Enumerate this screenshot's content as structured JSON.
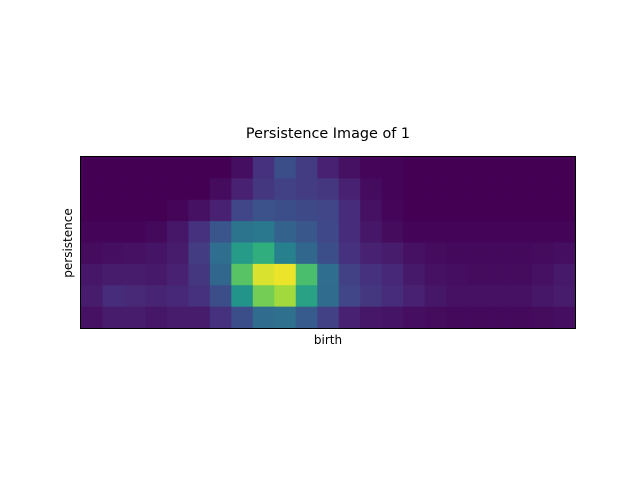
{
  "chart_data": {
    "type": "heatmap",
    "title": "Persistence Image of 1",
    "xlabel": "birth",
    "ylabel": "persistence",
    "colormap": "viridis",
    "rows": 8,
    "cols": 23,
    "value_range": [
      0,
      1
    ],
    "x_ticks_visible": false,
    "y_ticks_visible": false,
    "grid": false,
    "values": [
      [
        0.0,
        0.0,
        0.0,
        0.0,
        0.0,
        0.0,
        0.0,
        0.05,
        0.18,
        0.3,
        0.22,
        0.12,
        0.06,
        0.02,
        0.01,
        0.0,
        0.0,
        0.0,
        0.0,
        0.0,
        0.0,
        0.0,
        0.0
      ],
      [
        0.0,
        0.0,
        0.0,
        0.0,
        0.0,
        0.0,
        0.04,
        0.12,
        0.2,
        0.24,
        0.22,
        0.2,
        0.12,
        0.04,
        0.01,
        0.0,
        0.0,
        0.0,
        0.0,
        0.0,
        0.0,
        0.0,
        0.0
      ],
      [
        0.0,
        0.0,
        0.0,
        0.0,
        0.02,
        0.06,
        0.12,
        0.26,
        0.32,
        0.3,
        0.28,
        0.26,
        0.16,
        0.06,
        0.02,
        0.0,
        0.0,
        0.0,
        0.0,
        0.0,
        0.0,
        0.0,
        0.0
      ],
      [
        0.01,
        0.01,
        0.01,
        0.03,
        0.08,
        0.18,
        0.33,
        0.48,
        0.5,
        0.4,
        0.34,
        0.27,
        0.16,
        0.08,
        0.04,
        0.01,
        0.01,
        0.01,
        0.01,
        0.01,
        0.01,
        0.01,
        0.01
      ],
      [
        0.04,
        0.05,
        0.06,
        0.07,
        0.1,
        0.22,
        0.45,
        0.66,
        0.72,
        0.54,
        0.42,
        0.3,
        0.18,
        0.12,
        0.1,
        0.06,
        0.04,
        0.03,
        0.03,
        0.03,
        0.03,
        0.04,
        0.05
      ],
      [
        0.08,
        0.1,
        0.1,
        0.09,
        0.12,
        0.2,
        0.42,
        0.8,
        0.96,
        0.98,
        0.78,
        0.45,
        0.24,
        0.18,
        0.14,
        0.09,
        0.06,
        0.05,
        0.04,
        0.04,
        0.04,
        0.06,
        0.09
      ],
      [
        0.1,
        0.16,
        0.15,
        0.13,
        0.14,
        0.18,
        0.3,
        0.64,
        0.84,
        0.9,
        0.68,
        0.44,
        0.26,
        0.2,
        0.16,
        0.12,
        0.08,
        0.06,
        0.06,
        0.06,
        0.06,
        0.08,
        0.1
      ],
      [
        0.06,
        0.1,
        0.1,
        0.08,
        0.1,
        0.1,
        0.18,
        0.3,
        0.44,
        0.46,
        0.36,
        0.24,
        0.12,
        0.08,
        0.07,
        0.05,
        0.04,
        0.03,
        0.03,
        0.03,
        0.03,
        0.04,
        0.05
      ]
    ]
  }
}
